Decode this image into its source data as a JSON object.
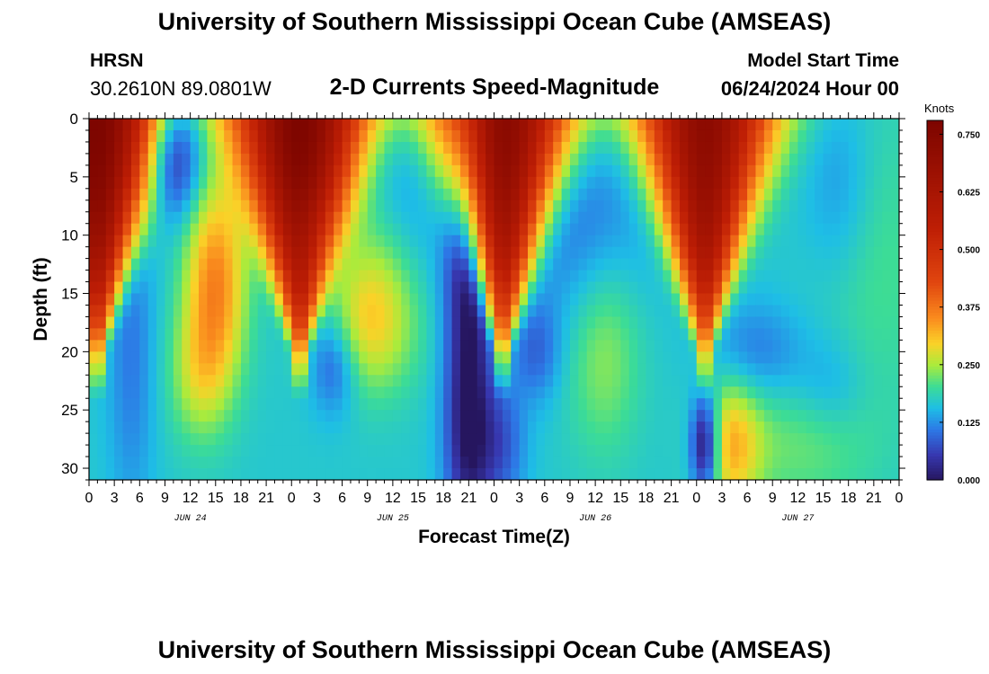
{
  "header": {
    "title": "University of Southern Mississippi Ocean Cube (AMSEAS)",
    "station": "HRSN",
    "coords": "30.2610N  89.0801W",
    "subtitle": "2-D Currents Speed-Magnitude",
    "model_start_label": "Model Start Time",
    "model_start_value": "06/24/2024 Hour 00"
  },
  "footer": {
    "title": "University of Southern Mississippi Ocean Cube (AMSEAS)"
  },
  "chart_data": {
    "type": "heatmap",
    "title": "2-D Currents Speed-Magnitude",
    "xlabel": "Forecast Time(Z)",
    "ylabel": "Depth (ft)",
    "x_unit": "hours since model start",
    "xlim": [
      0,
      96
    ],
    "ylim": [
      0,
      31
    ],
    "x_tick_labels": [
      "0",
      "3",
      "6",
      "9",
      "12",
      "15",
      "18",
      "21",
      "0",
      "3",
      "6",
      "9",
      "12",
      "15",
      "18",
      "21",
      "0",
      "3",
      "6",
      "9",
      "12",
      "15",
      "18",
      "21",
      "0",
      "3",
      "6",
      "9",
      "12",
      "15",
      "18",
      "21",
      "0"
    ],
    "y_ticks": [
      0,
      5,
      10,
      15,
      20,
      25,
      30
    ],
    "date_labels": [
      "JUN 24",
      "JUN 25",
      "JUN 26",
      "JUN 27"
    ],
    "colorbar": {
      "label": "Knots",
      "ticks": [
        "0.000",
        "0.125",
        "0.250",
        "0.375",
        "0.500",
        "0.625",
        "0.750"
      ],
      "min": 0.0,
      "max": 0.78
    },
    "peaks": [
      {
        "hour": 1,
        "speed": 0.78,
        "description": "strong surface current, decays with depth"
      },
      {
        "hour": 25,
        "speed": 0.78,
        "description": "strong surface current, decays with depth"
      },
      {
        "hour": 49,
        "speed": 0.75,
        "description": "strong surface current, decays with depth"
      },
      {
        "hour": 73,
        "speed": 0.74,
        "description": "strong surface current, decays with depth"
      }
    ],
    "grid": false,
    "legend": "colorbar-right"
  }
}
